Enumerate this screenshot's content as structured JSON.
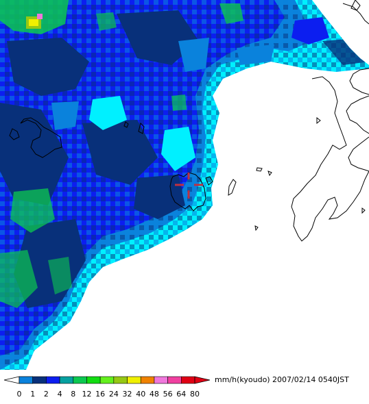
{
  "legend": {
    "units": "mm/h(kyoudo)",
    "timestamp": "2007/02/14 0540JST",
    "ticks": [
      "0",
      "1",
      "2",
      "4",
      "8",
      "12",
      "16",
      "24",
      "32",
      "40",
      "48",
      "56",
      "64",
      "80"
    ],
    "colors": [
      "#00f0ff",
      "#0a82dc",
      "#08307a",
      "#0c1ef0",
      "#06a0a0",
      "#0cc850",
      "#12dc12",
      "#64f01e",
      "#96c814",
      "#f0f000",
      "#f08200",
      "#f078dc",
      "#f040a0",
      "#e00014"
    ]
  },
  "map": {
    "colors": {
      "background": "#ffffff",
      "level_light": "#00f0ff",
      "level_mid": "#0a82dc",
      "level_dark": "#08307a",
      "level_blue": "#0c1ef0",
      "level_green": "#0cc850",
      "coastline": "#000000",
      "marker": "#c03040"
    }
  }
}
